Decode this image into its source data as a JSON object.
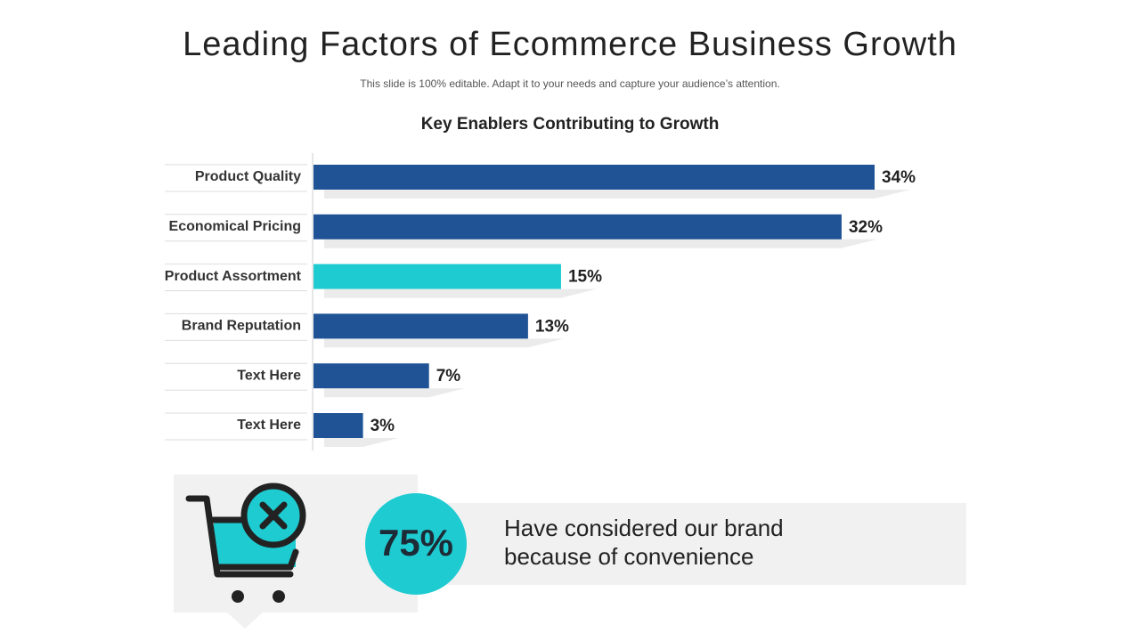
{
  "header": {
    "title": "Leading Factors of Ecommerce Business Growth",
    "subtitle": "This slide is 100% editable. Adapt it to your needs and capture your audience’s attention."
  },
  "chart_data": {
    "type": "bar",
    "orientation": "horizontal",
    "title": "Key Enablers Contributing to Growth",
    "categories": [
      "Product Quality",
      "Economical Pricing",
      "Product Assortment",
      "Brand Reputation",
      "Text Here",
      "Text Here"
    ],
    "values": [
      34,
      32,
      15,
      13,
      7,
      3
    ],
    "value_labels": [
      "34%",
      "32%",
      "15%",
      "13%",
      "7%",
      "3%"
    ],
    "colors": [
      "#1f5396",
      "#1f5396",
      "#1ecbd1",
      "#1f5396",
      "#1f5396",
      "#1f5396"
    ]
  },
  "callout": {
    "stat": "75%",
    "text": "Have considered our brand because of convenience"
  }
}
